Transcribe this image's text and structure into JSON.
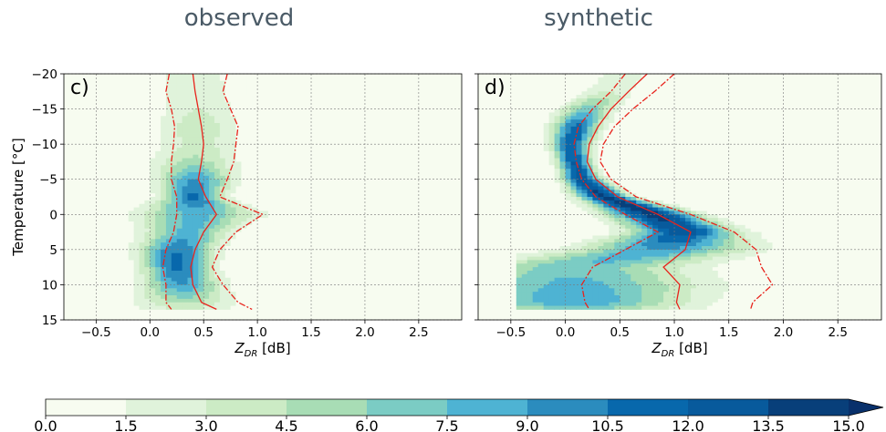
{
  "chart_data": [
    {
      "type": "heatmap",
      "title": "observed",
      "panel_label": "c)",
      "xlabel": "Z_DR [dB]",
      "xlabel_main": "Z",
      "xlabel_sub": "DR",
      "xlabel_unit": " [dB]",
      "ylabel": "Temperature [°C]",
      "xlim": [
        -0.8,
        2.9
      ],
      "ylim": [
        15,
        -20
      ],
      "xticks": [
        -0.5,
        0.0,
        0.5,
        1.0,
        1.5,
        2.0,
        2.5
      ],
      "xtick_labels": [
        "−0.5",
        "0.0",
        "0.5",
        "1.0",
        "1.5",
        "2.0",
        "2.5"
      ],
      "yticks": [
        -20,
        -15,
        -10,
        -5,
        0,
        5,
        10,
        15
      ],
      "ytick_labels": [
        "−20",
        "−15",
        "−10",
        "−5",
        "0",
        "5",
        "10",
        "15"
      ],
      "grid": true,
      "temperature": [
        -20,
        -17.5,
        -15,
        -12.5,
        -10,
        -7.5,
        -5,
        -2.5,
        0,
        2.5,
        5,
        7.5,
        10,
        12.5,
        13.5
      ],
      "median": [
        0.4,
        0.42,
        0.45,
        0.48,
        0.5,
        0.48,
        0.45,
        0.52,
        0.62,
        0.5,
        0.42,
        0.38,
        0.4,
        0.48,
        0.62
      ],
      "lower": [
        0.18,
        0.15,
        0.2,
        0.23,
        0.22,
        0.2,
        0.2,
        0.25,
        0.25,
        0.22,
        0.15,
        0.12,
        0.15,
        0.15,
        0.2
      ],
      "upper": [
        0.72,
        0.68,
        0.75,
        0.82,
        0.8,
        0.78,
        0.72,
        0.65,
        1.05,
        0.8,
        0.65,
        0.58,
        0.68,
        0.82,
        0.95
      ],
      "density_ridge": [
        0.4,
        0.42,
        0.45,
        0.45,
        0.45,
        0.42,
        0.42,
        0.4,
        0.45,
        0.35,
        0.25,
        0.25,
        0.3,
        0.32,
        0.32
      ],
      "density_peak": [
        2.5,
        3,
        3,
        4,
        3.5,
        5,
        9,
        11,
        8,
        8,
        10.5,
        11,
        9,
        5,
        3
      ],
      "line_color": "#e8231c"
    },
    {
      "type": "heatmap",
      "title": "synthetic",
      "panel_label": "d)",
      "xlabel": "Z_DR [dB]",
      "xlabel_main": "Z",
      "xlabel_sub": "DR",
      "xlabel_unit": " [dB]",
      "xlim": [
        -0.8,
        2.9
      ],
      "ylim": [
        15,
        -20
      ],
      "xticks": [
        -0.5,
        0.0,
        0.5,
        1.0,
        1.5,
        2.0,
        2.5
      ],
      "xtick_labels": [
        "−0.5",
        "0.0",
        "0.5",
        "1.0",
        "1.5",
        "2.0",
        "2.5"
      ],
      "yticks": [
        -20,
        -15,
        -10,
        -5,
        0,
        5,
        10,
        15
      ],
      "grid": true,
      "temperature": [
        -20,
        -17.5,
        -15,
        -12.5,
        -10,
        -7.5,
        -5,
        -2.5,
        0,
        2.5,
        5,
        7.5,
        10,
        12.5,
        13.5
      ],
      "median": [
        0.75,
        0.58,
        0.42,
        0.3,
        0.22,
        0.2,
        0.28,
        0.48,
        0.85,
        1.15,
        1.1,
        0.9,
        1.05,
        1.02,
        1.05
      ],
      "lower": [
        0.55,
        0.42,
        0.25,
        0.12,
        0.08,
        0.1,
        0.15,
        0.28,
        0.55,
        0.85,
        0.55,
        0.25,
        0.15,
        0.18,
        0.22
      ],
      "upper": [
        1.0,
        0.82,
        0.62,
        0.45,
        0.35,
        0.32,
        0.42,
        0.65,
        1.15,
        1.55,
        1.75,
        1.8,
        1.9,
        1.72,
        1.7
      ],
      "density_ridge": [
        0.55,
        0.4,
        0.2,
        0.1,
        0.05,
        0.08,
        0.15,
        0.35,
        0.8,
        1.1,
        0.9,
        0.1,
        0.08,
        0.1,
        0.12
      ],
      "density_peak": [
        2,
        3,
        7,
        11,
        12,
        12,
        13,
        14,
        14,
        13,
        9,
        7,
        8,
        9,
        6
      ],
      "line_color": "#e8231c"
    }
  ],
  "colorbar": {
    "ticks": [
      0.0,
      1.5,
      3.0,
      4.5,
      6.0,
      7.5,
      9.0,
      10.5,
      12.0,
      13.5,
      15.0
    ],
    "tick_labels": [
      "0.0",
      "1.5",
      "3.0",
      "4.5",
      "6.0",
      "7.5",
      "9.0",
      "10.5",
      "12.0",
      "13.5",
      "15.0"
    ],
    "colors": [
      "#f7fcf0",
      "#e0f3db",
      "#ccebc5",
      "#a8ddb5",
      "#7bccc4",
      "#4eb3d3",
      "#2b8cbe",
      "#0868ac",
      "#085a9c",
      "#083f7a",
      "#08306b"
    ],
    "extend": "max"
  }
}
